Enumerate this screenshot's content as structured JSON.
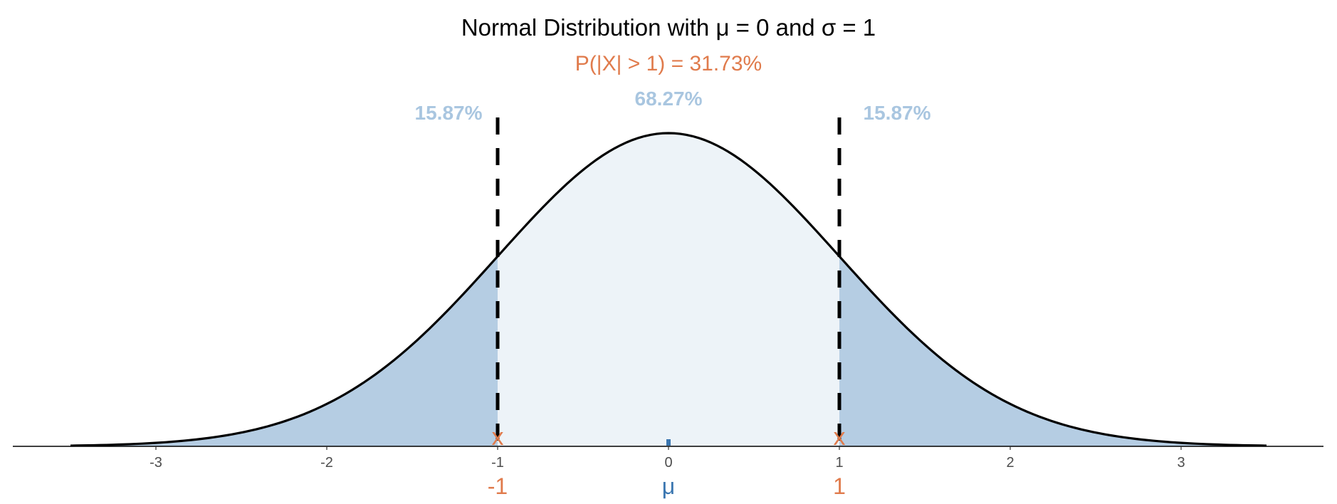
{
  "chart_data": {
    "type": "area",
    "title": "Normal Distribution with μ = 0 and σ = 1",
    "subtitle": "P(|X| > 1) = 31.73%",
    "distribution": {
      "mean": 0,
      "sd": 1
    },
    "xlim": [
      -3.5,
      3.5
    ],
    "x_ticks": [
      "-3",
      "-2",
      "-1",
      "0",
      "1",
      "2",
      "3"
    ],
    "x_tick_values": [
      -3,
      -2,
      -1,
      0,
      1,
      2,
      3
    ],
    "cutoffs": [
      -1,
      1
    ],
    "marker_labels": [
      {
        "x": -1,
        "label": "-1",
        "color": "#e07b4c"
      },
      {
        "x": 0,
        "label": "μ",
        "color": "#3a76b0"
      },
      {
        "x": 1,
        "label": "1",
        "color": "#e07b4c"
      }
    ],
    "region_labels": {
      "left_tail": "15.87%",
      "center": "68.27%",
      "right_tail": "15.87%"
    },
    "grid": false,
    "colors": {
      "tail_fill": "#b5cde3",
      "center_fill": "#edf3f8",
      "region_label": "#a9c6e0",
      "accent": "#e07b4c",
      "mean": "#3a76b0",
      "tick_label": "#4d4d4d"
    }
  }
}
